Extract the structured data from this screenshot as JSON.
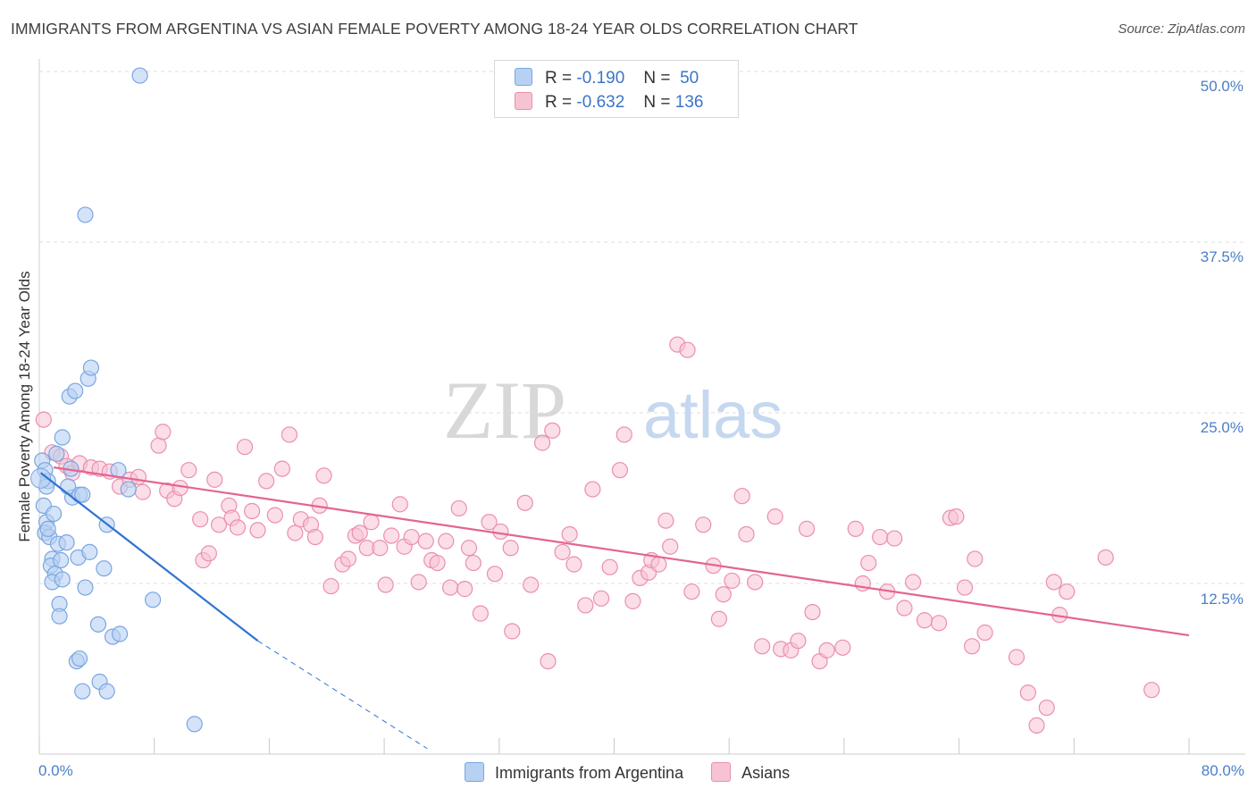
{
  "header": {
    "title": "IMMIGRANTS FROM ARGENTINA VS ASIAN FEMALE POVERTY AMONG 18-24 YEAR OLDS CORRELATION CHART",
    "source": "Source: ZipAtlas.com"
  },
  "watermark": {
    "zip": "ZIP",
    "atlas": "atlas"
  },
  "legend_top": {
    "r_label": "R =",
    "n_label": "N =",
    "rows": [
      {
        "r": "-0.190",
        "n": "50",
        "color": "#a9c8f0"
      },
      {
        "r": "-0.632",
        "n": "136",
        "color": "#f6b8cb"
      }
    ]
  },
  "colors": {
    "blue_fill": "#b7d1f3",
    "blue_stroke": "#7aa6e0",
    "blue_line": "#2e74d0",
    "pink_fill": "#f7c3d3",
    "pink_stroke": "#eb8fad",
    "pink_line": "#e3658f",
    "grid": "#dddddd",
    "tick_label": "#4a7fc8"
  },
  "chart_data": {
    "type": "scatter",
    "title": "IMMIGRANTS FROM ARGENTINA VS ASIAN FEMALE POVERTY AMONG 18-24 YEAR OLDS CORRELATION CHART",
    "xlabel": "",
    "ylabel": "Female Poverty Among 18-24 Year Olds",
    "xlim": [
      0,
      80
    ],
    "ylim": [
      0,
      50
    ],
    "x_ticks": [
      "0.0%",
      "80.0%"
    ],
    "y_ticks": [
      "12.5%",
      "25.0%",
      "37.5%",
      "50.0%"
    ],
    "y_tick_values": [
      12.5,
      25,
      37.5,
      50
    ],
    "legend_position": "top-center",
    "series": [
      {
        "name": "Immigrants from Argentina",
        "r": -0.19,
        "n": 50,
        "trend": {
          "x0": 0.1,
          "y0": 20.6,
          "x1": 15.2,
          "y1": 8.3,
          "dash_to_x": 27.0,
          "dash_to_y": 0.4
        },
        "points": [
          [
            0.2,
            21.5
          ],
          [
            0.4,
            20.8
          ],
          [
            0.6,
            20.0
          ],
          [
            0.5,
            19.6
          ],
          [
            0.3,
            18.2
          ],
          [
            0.5,
            17.0
          ],
          [
            0.4,
            16.2
          ],
          [
            0.7,
            15.9
          ],
          [
            0.6,
            16.5
          ],
          [
            1.0,
            17.6
          ],
          [
            0.9,
            14.3
          ],
          [
            0.8,
            13.8
          ],
          [
            1.1,
            13.2
          ],
          [
            0.9,
            12.6
          ],
          [
            1.3,
            15.4
          ],
          [
            1.5,
            14.2
          ],
          [
            1.6,
            12.8
          ],
          [
            1.4,
            11.0
          ],
          [
            1.2,
            22.0
          ],
          [
            1.6,
            23.2
          ],
          [
            2.1,
            26.2
          ],
          [
            2.5,
            26.6
          ],
          [
            3.4,
            27.5
          ],
          [
            3.6,
            28.3
          ],
          [
            2.2,
            20.9
          ],
          [
            2.3,
            18.8
          ],
          [
            2.0,
            19.6
          ],
          [
            2.8,
            19.0
          ],
          [
            3.0,
            19.0
          ],
          [
            1.9,
            15.5
          ],
          [
            2.7,
            14.4
          ],
          [
            3.5,
            14.8
          ],
          [
            3.2,
            12.2
          ],
          [
            4.5,
            13.6
          ],
          [
            4.7,
            16.8
          ],
          [
            6.2,
            19.4
          ],
          [
            5.5,
            20.8
          ],
          [
            1.4,
            10.1
          ],
          [
            4.1,
            9.5
          ],
          [
            5.1,
            8.6
          ],
          [
            5.6,
            8.8
          ],
          [
            2.6,
            6.8
          ],
          [
            2.8,
            7.0
          ],
          [
            4.2,
            5.3
          ],
          [
            3.0,
            4.6
          ],
          [
            4.7,
            4.6
          ],
          [
            7.9,
            11.3
          ],
          [
            10.8,
            2.2
          ],
          [
            3.2,
            39.5
          ],
          [
            7.0,
            49.7
          ]
        ]
      },
      {
        "name": "Asians",
        "r": -0.632,
        "n": 136,
        "trend": {
          "x0": 1.0,
          "y0": 21.0,
          "x1": 80.0,
          "y1": 8.7
        },
        "points": [
          [
            0.3,
            24.5
          ],
          [
            0.9,
            22.1
          ],
          [
            1.5,
            21.8
          ],
          [
            1.9,
            21.1
          ],
          [
            2.3,
            20.6
          ],
          [
            2.8,
            21.3
          ],
          [
            3.6,
            21.0
          ],
          [
            4.2,
            20.9
          ],
          [
            4.9,
            20.7
          ],
          [
            5.6,
            19.6
          ],
          [
            6.3,
            20.1
          ],
          [
            6.9,
            20.3
          ],
          [
            7.2,
            19.2
          ],
          [
            8.3,
            22.6
          ],
          [
            8.6,
            23.6
          ],
          [
            8.9,
            19.3
          ],
          [
            9.4,
            18.7
          ],
          [
            9.8,
            19.5
          ],
          [
            10.4,
            20.8
          ],
          [
            11.2,
            17.2
          ],
          [
            11.4,
            14.2
          ],
          [
            11.8,
            14.7
          ],
          [
            12.2,
            20.1
          ],
          [
            12.5,
            16.8
          ],
          [
            13.2,
            18.2
          ],
          [
            13.4,
            17.3
          ],
          [
            13.8,
            16.6
          ],
          [
            14.3,
            22.5
          ],
          [
            14.8,
            17.8
          ],
          [
            15.2,
            16.4
          ],
          [
            15.8,
            20.0
          ],
          [
            16.4,
            17.5
          ],
          [
            16.9,
            20.9
          ],
          [
            17.4,
            23.4
          ],
          [
            17.8,
            16.2
          ],
          [
            18.2,
            17.2
          ],
          [
            18.9,
            16.8
          ],
          [
            19.2,
            15.9
          ],
          [
            19.8,
            20.4
          ],
          [
            19.5,
            18.2
          ],
          [
            20.3,
            12.3
          ],
          [
            21.1,
            13.9
          ],
          [
            21.5,
            14.3
          ],
          [
            22.0,
            16.0
          ],
          [
            22.3,
            16.2
          ],
          [
            22.8,
            15.1
          ],
          [
            23.1,
            17.0
          ],
          [
            23.7,
            15.1
          ],
          [
            24.1,
            12.4
          ],
          [
            24.5,
            16.0
          ],
          [
            25.1,
            18.3
          ],
          [
            25.4,
            15.2
          ],
          [
            25.9,
            15.9
          ],
          [
            26.4,
            12.6
          ],
          [
            26.9,
            15.6
          ],
          [
            27.3,
            14.2
          ],
          [
            27.7,
            14.0
          ],
          [
            28.3,
            15.6
          ],
          [
            28.6,
            12.2
          ],
          [
            29.2,
            18.0
          ],
          [
            29.6,
            12.1
          ],
          [
            29.9,
            15.1
          ],
          [
            30.2,
            14.0
          ],
          [
            30.7,
            10.3
          ],
          [
            31.3,
            17.0
          ],
          [
            31.7,
            13.2
          ],
          [
            32.1,
            16.3
          ],
          [
            32.8,
            15.1
          ],
          [
            32.9,
            9.0
          ],
          [
            33.8,
            18.4
          ],
          [
            34.2,
            12.4
          ],
          [
            35.0,
            22.8
          ],
          [
            35.4,
            6.8
          ],
          [
            35.7,
            23.7
          ],
          [
            36.4,
            14.8
          ],
          [
            36.9,
            16.1
          ],
          [
            37.2,
            13.9
          ],
          [
            38.0,
            10.9
          ],
          [
            38.5,
            19.4
          ],
          [
            39.1,
            11.4
          ],
          [
            39.7,
            13.7
          ],
          [
            40.4,
            20.8
          ],
          [
            40.7,
            23.4
          ],
          [
            41.3,
            11.2
          ],
          [
            41.8,
            12.9
          ],
          [
            42.4,
            13.3
          ],
          [
            42.6,
            14.2
          ],
          [
            43.1,
            13.9
          ],
          [
            43.6,
            17.1
          ],
          [
            43.9,
            15.2
          ],
          [
            44.4,
            30.0
          ],
          [
            45.1,
            29.6
          ],
          [
            45.4,
            11.9
          ],
          [
            46.2,
            16.8
          ],
          [
            46.9,
            13.8
          ],
          [
            47.3,
            9.9
          ],
          [
            47.6,
            11.7
          ],
          [
            48.2,
            12.7
          ],
          [
            48.9,
            18.9
          ],
          [
            49.2,
            16.1
          ],
          [
            49.8,
            12.6
          ],
          [
            50.3,
            7.9
          ],
          [
            51.2,
            17.4
          ],
          [
            51.6,
            7.7
          ],
          [
            52.3,
            7.6
          ],
          [
            52.8,
            8.3
          ],
          [
            53.4,
            16.5
          ],
          [
            53.8,
            10.4
          ],
          [
            54.3,
            6.8
          ],
          [
            54.8,
            7.6
          ],
          [
            55.9,
            7.8
          ],
          [
            56.8,
            16.5
          ],
          [
            57.3,
            12.5
          ],
          [
            57.7,
            14.0
          ],
          [
            58.5,
            15.9
          ],
          [
            59.5,
            15.8
          ],
          [
            59.0,
            11.9
          ],
          [
            60.2,
            10.7
          ],
          [
            60.8,
            12.6
          ],
          [
            61.6,
            9.8
          ],
          [
            62.6,
            9.6
          ],
          [
            63.4,
            17.3
          ],
          [
            63.8,
            17.4
          ],
          [
            64.4,
            12.2
          ],
          [
            65.1,
            14.3
          ],
          [
            64.9,
            7.9
          ],
          [
            65.8,
            8.9
          ],
          [
            68.0,
            7.1
          ],
          [
            68.8,
            4.5
          ],
          [
            69.4,
            2.1
          ],
          [
            70.1,
            3.4
          ],
          [
            70.6,
            12.6
          ],
          [
            71.0,
            10.2
          ],
          [
            71.5,
            11.9
          ],
          [
            74.2,
            14.4
          ],
          [
            77.4,
            4.7
          ]
        ]
      }
    ]
  },
  "legend_bottom": [
    {
      "label": "Immigrants from Argentina",
      "color": "#b7d1f3"
    },
    {
      "label": "Asians",
      "color": "#f7c3d3"
    }
  ]
}
